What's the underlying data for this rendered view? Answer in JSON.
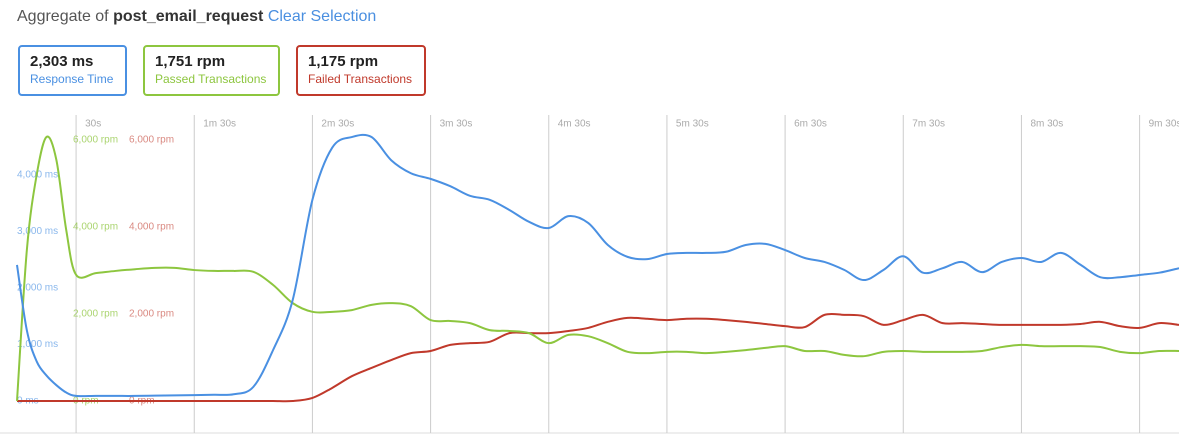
{
  "header": {
    "prefix": "Aggregate of",
    "name": "post_email_request",
    "link": "Clear Selection"
  },
  "metrics": [
    {
      "value": "2,303 ms",
      "label": "Response Time",
      "color": "#4a90e2"
    },
    {
      "value": "1,751 rpm",
      "label": "Passed Transactions",
      "color": "#8dc63f"
    },
    {
      "value": "1,175 rpm",
      "label": "Failed Transactions",
      "color": "#c0392b"
    }
  ],
  "chart_data": {
    "type": "line",
    "x": [
      0,
      5,
      10,
      15,
      20,
      25,
      30,
      40,
      50,
      60,
      70,
      80,
      90,
      100,
      110,
      120,
      130,
      140,
      150,
      160,
      170,
      180,
      190,
      200,
      210,
      220,
      230,
      240,
      250,
      260,
      270,
      280,
      290,
      300,
      310,
      320,
      330,
      340,
      350,
      360,
      370,
      380,
      390,
      400,
      410,
      420,
      430,
      440,
      450,
      460,
      470,
      480,
      490,
      500,
      510,
      520,
      530,
      540,
      550,
      560,
      570,
      580,
      590
    ],
    "xlim": [
      0,
      590
    ],
    "xticks": [
      {
        "value": 30,
        "label": "30s"
      },
      {
        "value": 90,
        "label": "1m 30s"
      },
      {
        "value": 150,
        "label": "2m 30s"
      },
      {
        "value": 210,
        "label": "3m 30s"
      },
      {
        "value": 270,
        "label": "4m 30s"
      },
      {
        "value": 330,
        "label": "5m 30s"
      },
      {
        "value": 390,
        "label": "6m 30s"
      },
      {
        "value": 450,
        "label": "7m 30s"
      },
      {
        "value": 510,
        "label": "8m 30s"
      },
      {
        "value": 570,
        "label": "9m 30s"
      }
    ],
    "ylim": [
      -566,
      5060
    ],
    "yticks": [
      {
        "value": 0,
        "label": "0 ms"
      },
      {
        "value": 1000,
        "label": "1,000 ms"
      },
      {
        "value": 2000,
        "label": "2,000 ms"
      },
      {
        "value": 3000,
        "label": "3,000 ms"
      },
      {
        "value": 4000,
        "label": "4,000 ms"
      }
    ],
    "y2lim": [
      -736,
      6575
    ],
    "y2ticks": [
      {
        "value": 0,
        "label": "0 rpm"
      },
      {
        "value": 2000,
        "label": "2,000 rpm"
      },
      {
        "value": 4000,
        "label": "4,000 rpm"
      },
      {
        "value": 6000,
        "label": "6,000 rpm"
      }
    ],
    "grid": true,
    "series": [
      {
        "name": "Response Time",
        "color": "#4a90e2",
        "axis": "y",
        "values": [
          2407,
          1250,
          700,
          450,
          280,
          150,
          90,
          90,
          90,
          90,
          95,
          100,
          105,
          110,
          120,
          250,
          900,
          1790,
          3560,
          4480,
          4670,
          4670,
          4260,
          4030,
          3930,
          3800,
          3630,
          3560,
          3380,
          3170,
          3060,
          3270,
          3150,
          2760,
          2550,
          2510,
          2600,
          2620,
          2620,
          2640,
          2760,
          2780,
          2670,
          2530,
          2460,
          2320,
          2140,
          2320,
          2560,
          2270,
          2350,
          2460,
          2280,
          2460,
          2530,
          2460,
          2620,
          2410,
          2190,
          2190,
          2230,
          2270,
          2350
        ]
      },
      {
        "name": "Passed Transactions",
        "color": "#8dc63f",
        "axis": "y2",
        "values": [
          0,
          3470,
          5200,
          6070,
          5540,
          3930,
          2900,
          2940,
          2990,
          3030,
          3060,
          3060,
          3010,
          2990,
          2990,
          2970,
          2670,
          2250,
          2050,
          2050,
          2090,
          2210,
          2250,
          2180,
          1860,
          1840,
          1790,
          1630,
          1610,
          1560,
          1330,
          1520,
          1490,
          1330,
          1130,
          1100,
          1130,
          1130,
          1100,
          1130,
          1170,
          1220,
          1260,
          1150,
          1150,
          1060,
          1030,
          1130,
          1150,
          1130,
          1130,
          1130,
          1150,
          1240,
          1290,
          1260,
          1260,
          1260,
          1240,
          1130,
          1100,
          1150,
          1150
        ]
      },
      {
        "name": "Failed Transactions",
        "color": "#c0392b",
        "axis": "y2",
        "values": [
          0,
          0,
          0,
          0,
          0,
          0,
          0,
          0,
          0,
          0,
          0,
          0,
          0,
          0,
          0,
          0,
          0,
          0,
          70,
          300,
          570,
          760,
          940,
          1100,
          1150,
          1290,
          1330,
          1360,
          1560,
          1560,
          1560,
          1610,
          1680,
          1820,
          1910,
          1890,
          1860,
          1890,
          1890,
          1860,
          1820,
          1770,
          1720,
          1700,
          1980,
          1980,
          1950,
          1750,
          1860,
          1980,
          1790,
          1790,
          1770,
          1750,
          1750,
          1750,
          1750,
          1770,
          1820,
          1720,
          1680,
          1790,
          1750
        ]
      }
    ]
  }
}
